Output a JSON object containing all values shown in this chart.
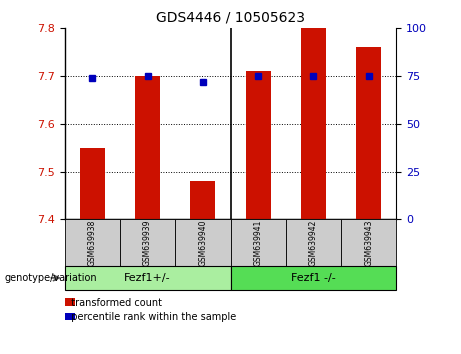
{
  "title": "GDS4446 / 10505623",
  "samples": [
    "GSM639938",
    "GSM639939",
    "GSM639940",
    "GSM639941",
    "GSM639942",
    "GSM639943"
  ],
  "red_values": [
    7.55,
    7.7,
    7.48,
    7.71,
    7.8,
    7.76
  ],
  "blue_percentiles": [
    74,
    75,
    72,
    75,
    75,
    75
  ],
  "ylim_left": [
    7.4,
    7.8
  ],
  "yticks_left": [
    7.4,
    7.5,
    7.6,
    7.7,
    7.8
  ],
  "ylim_right": [
    0,
    100
  ],
  "yticks_right": [
    0,
    25,
    50,
    75,
    100
  ],
  "group1_label": "Fezf1+/-",
  "group2_label": "Fezf1 -/-",
  "group_row_label": "genotype/variation",
  "legend_red": "transformed count",
  "legend_blue": "percentile rank within the sample",
  "bar_color": "#cc1100",
  "blue_color": "#0000bb",
  "group1_color": "#aaeea0",
  "group2_color": "#55dd55",
  "sample_box_color": "#cccccc",
  "bar_width": 0.45
}
